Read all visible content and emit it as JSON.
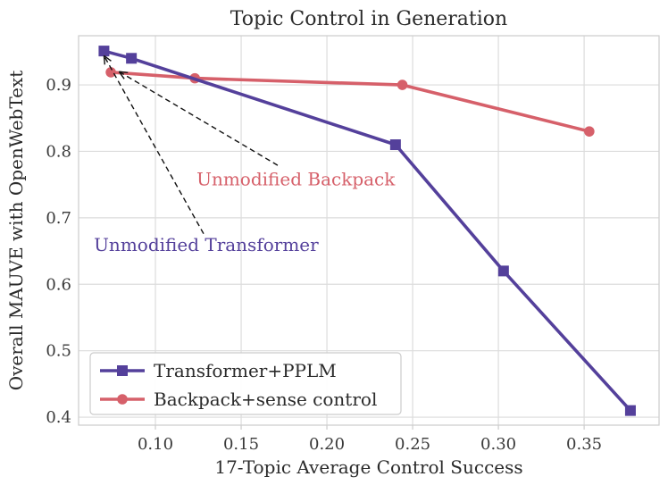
{
  "chart_data": {
    "type": "line",
    "title": "Topic Control in Generation",
    "xlabel": "17-Topic Average Control Success",
    "ylabel": "Overall MAUVE with OpenWebText",
    "xlim": [
      0.0552,
      0.3937
    ],
    "ylim": [
      0.388,
      0.974
    ],
    "x_ticks": [
      0.1,
      0.15,
      0.2,
      0.25,
      0.3,
      0.35
    ],
    "x_tick_labels": [
      "0.10",
      "0.15",
      "0.20",
      "0.25",
      "0.30",
      "0.35"
    ],
    "y_ticks": [
      0.4,
      0.5,
      0.6,
      0.7,
      0.8,
      0.9
    ],
    "y_tick_labels": [
      "0.4",
      "0.5",
      "0.6",
      "0.7",
      "0.8",
      "0.9"
    ],
    "grid": true,
    "legend_position": "lower-left",
    "colors": {
      "transformer_purple": "#54409b",
      "backpack_red": "#d6606a",
      "grid_line": "#dcdcdc",
      "spine": "#cccccc",
      "arrow": "#111111",
      "text": "#2b2b2b"
    },
    "series": [
      {
        "name": "Transformer+PPLM",
        "color": "#54409b",
        "marker": "square",
        "points": [
          [
            0.07,
            0.951
          ],
          [
            0.086,
            0.94
          ],
          [
            0.24,
            0.81
          ],
          [
            0.303,
            0.62
          ],
          [
            0.377,
            0.41
          ]
        ]
      },
      {
        "name": "Backpack+sense control",
        "color": "#d6606a",
        "marker": "circle",
        "points": [
          [
            0.074,
            0.919
          ],
          [
            0.123,
            0.91
          ],
          [
            0.244,
            0.9
          ],
          [
            0.353,
            0.83
          ]
        ]
      }
    ],
    "annotations": [
      {
        "label": "Unmodified Transformer",
        "color": "#54409b",
        "text_xy": [
          0.0641,
          0.65
        ],
        "arrow_start": [
          0.1281,
          0.676
        ],
        "arrow_end": [
          0.07,
          0.944
        ]
      },
      {
        "label": "Unmodified Backpack",
        "color": "#d6606a",
        "text_xy": [
          0.124,
          0.749
        ],
        "arrow_start": [
          0.1713,
          0.779
        ],
        "arrow_end": [
          0.0788,
          0.92
        ]
      }
    ]
  }
}
